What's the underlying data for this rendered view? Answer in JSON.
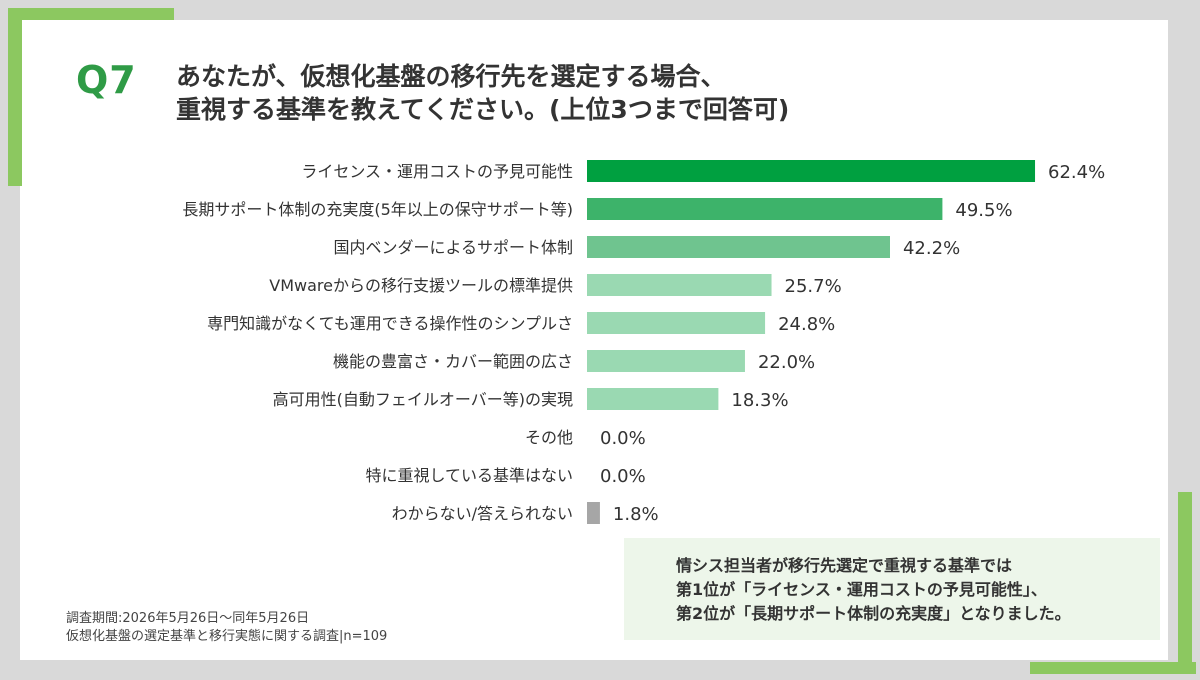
{
  "question": {
    "number": "Q7",
    "title_line1": "あなたが、仮想化基盤の移行先を選定する場合、",
    "title_line2": "重視する基準を教えてください。(上位3つまで回答可)"
  },
  "chart_data": {
    "type": "bar",
    "orientation": "horizontal",
    "unit": "%",
    "categories": [
      "ライセンス・運用コストの予見可能性",
      "長期サポート体制の充実度(5年以上の保守サポート等)",
      "国内ベンダーによるサポート体制",
      "VMwareからの移行支援ツールの標準提供",
      "専門知識がなくても運用できる操作性のシンプルさ",
      "機能の豊富さ・カバー範囲の広さ",
      "高可用性(自動フェイルオーバー等)の実現",
      "その他",
      "特に重視している基準はない",
      "わからない/答えられない"
    ],
    "values": [
      62.4,
      49.5,
      42.2,
      25.7,
      24.8,
      22.0,
      18.3,
      0.0,
      0.0,
      1.8
    ],
    "value_labels": [
      "62.4%",
      "49.5%",
      "42.2%",
      "25.7%",
      "24.8%",
      "22.0%",
      "18.3%",
      "0.0%",
      "0.0%",
      "1.8%"
    ],
    "bar_colors": [
      "#00a040",
      "#3db36a",
      "#6fc48f",
      "#9ad9b2",
      "#9ad9b2",
      "#9ad9b2",
      "#9ad9b2",
      "#9ad9b2",
      "#9ad9b2",
      "#a6a6a6"
    ],
    "xlim": [
      0,
      100
    ],
    "grid": false
  },
  "note": {
    "line1": "情シス担当者が移行先選定で重視する基準では",
    "line2": "第1位が「ライセンス・運用コストの予見可能性」、",
    "line3": "第2位が「長期サポート体制の充実度」となりました。"
  },
  "footer": {
    "line1": "調査期間:2026年5月26日〜同年5月26日",
    "line2": "仮想化基盤の選定基準と移行実態に関する調査|n=109"
  }
}
